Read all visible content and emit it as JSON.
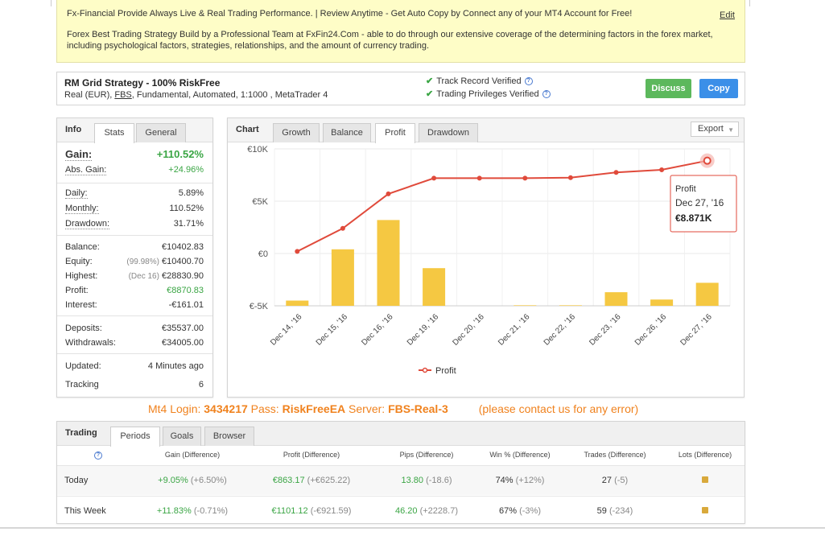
{
  "notice": {
    "line1": "Fx-Financial Provide Always Live & Real Trading Performance. | Review Anytime - Get Auto Copy by Connect any of your MT4 Account for Free!",
    "edit": "Edit",
    "line2": "Forex Best Trading Strategy Build by a Professional Team at FxFin24.Com - able to do through our extensive coverage of the determining factors in the forex market, including psychological factors, strategies, relationships, and the amount of currency trading."
  },
  "header": {
    "title": "RM Grid Strategy - 100% RiskFree",
    "sub_prefix": "Real (EUR), ",
    "broker": "FBS",
    "sub_suffix": ", Fundamental, Automated, 1:1000 , MetaTrader 4",
    "verified1": "Track Record Verified",
    "verified2": "Trading Privileges Verified",
    "discuss": "Discuss",
    "copy": "Copy"
  },
  "info": {
    "tabs": [
      "Info",
      "Stats",
      "General"
    ],
    "gain_label": "Gain:",
    "gain": "+110.52%",
    "abs_gain_label": "Abs. Gain:",
    "abs_gain": "+24.96%",
    "daily_label": "Daily:",
    "daily": "5.89%",
    "monthly_label": "Monthly:",
    "monthly": "110.52%",
    "drawdown_label": "Drawdown:",
    "drawdown": "31.71%",
    "balance_label": "Balance:",
    "balance": "€10402.83",
    "equity_label": "Equity:",
    "equity_note": "(99.98%)",
    "equity": "€10400.70",
    "highest_label": "Highest:",
    "highest_note": "(Dec 16)",
    "highest": "€28830.90",
    "profit_label": "Profit:",
    "profit": "€8870.83",
    "interest_label": "Interest:",
    "interest": "-€161.01",
    "deposits_label": "Deposits:",
    "deposits": "€35537.00",
    "withdrawals_label": "Withdrawals:",
    "withdrawals": "€34005.00",
    "updated_label": "Updated:",
    "updated": "4 Minutes ago",
    "tracking_label": "Tracking",
    "tracking": "6"
  },
  "chart_panel": {
    "tabs": [
      "Chart",
      "Growth",
      "Balance",
      "Profit",
      "Drawdown"
    ],
    "export": "Export",
    "tooltip": {
      "series": "Profit",
      "date": "Dec 27, '16",
      "value": "€8.871K"
    }
  },
  "chart_data": {
    "type": "line",
    "categories": [
      "Dec 14, '16",
      "Dec 15, '16",
      "Dec 16, '16",
      "Dec 19, '16",
      "Dec 20, '16",
      "Dec 21, '16",
      "Dec 22, '16",
      "Dec 23, '16",
      "Dec 26, '16",
      "Dec 27, '16"
    ],
    "series": [
      {
        "name": "Profit",
        "type": "line",
        "color": "#e04a3b",
        "values": [
          200,
          2400,
          5700,
          7200,
          7200,
          7200,
          7250,
          7750,
          8000,
          8871
        ]
      },
      {
        "type": "bar",
        "color": "#f5c842",
        "values": [
          500,
          5400,
          8200,
          3600,
          0,
          50,
          50,
          1300,
          600,
          2200
        ]
      }
    ],
    "y_ticks": [
      "€10K",
      "€5K",
      "€0",
      "€-5K"
    ],
    "ylim": [
      -5000,
      10000
    ],
    "legend": "bottom"
  },
  "mt4": {
    "login_label": "Mt4 Login: ",
    "login": "3434217",
    "pass_label": " Pass: ",
    "pass": "RiskFreeEA",
    "server_label": " Server: ",
    "server": "FBS-Real-3",
    "note": "(please contact us for any error)"
  },
  "trading": {
    "tabs": [
      "Trading",
      "Periods",
      "Goals",
      "Browser"
    ],
    "headers": [
      "Gain (Difference)",
      "Profit (Difference)",
      "Pips (Difference)",
      "Win % (Difference)",
      "Trades (Difference)",
      "Lots (Difference)"
    ],
    "rows": [
      {
        "label": "Today",
        "gain": "+9.05%",
        "gain_diff": "(+6.50%)",
        "profit": "€863.17",
        "profit_diff": "(+€625.22)",
        "pips": "13.80",
        "pips_diff": "(-18.6)",
        "win": "74%",
        "win_diff": "(+12%)",
        "trades": "27",
        "trades_diff": "(-5)"
      },
      {
        "label": "This Week",
        "gain": "+11.83%",
        "gain_diff": "(-0.71%)",
        "profit": "€1101.12",
        "profit_diff": "(-€921.59)",
        "pips": "46.20",
        "pips_diff": "(+2228.7)",
        "win": "67%",
        "win_diff": "(-3%)",
        "trades": "59",
        "trades_diff": "(-234)"
      }
    ]
  }
}
